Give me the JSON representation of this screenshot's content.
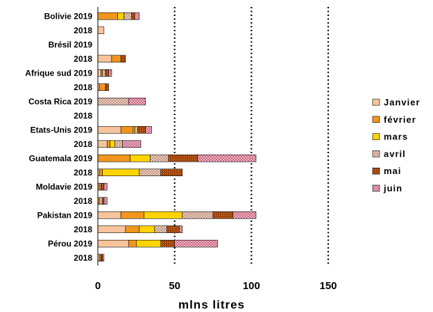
{
  "chart_data": {
    "type": "bar",
    "orientation": "horizontal",
    "stacked": true,
    "categories": [
      "Bolivie 2019",
      "2018",
      "Brésil 2019",
      "2018",
      "Afrique sud 2019",
      "2018",
      "Costa Rica 2019",
      "2018",
      "Etats-Unis 2019",
      "2018",
      "Guatemala 2019",
      "2018",
      "Moldavie 2019",
      "2018",
      "Pakistan 2019",
      "2018",
      "Pérou 2019",
      "2018"
    ],
    "series": [
      {
        "name": "Janvier",
        "color": "#f7c49b",
        "pattern": "solid",
        "values": [
          0,
          4,
          0,
          9,
          2,
          1,
          0,
          0,
          15,
          6,
          0,
          1,
          0,
          0,
          15,
          18,
          20,
          1
        ]
      },
      {
        "name": "février",
        "color": "#f0961e",
        "pattern": "solid",
        "values": [
          13,
          0,
          0,
          6,
          1,
          4,
          0,
          0,
          8,
          2,
          21,
          2,
          1,
          1,
          15,
          9,
          5,
          1
        ]
      },
      {
        "name": "mars",
        "color": "#ffd400",
        "pattern": "solid",
        "values": [
          4,
          0,
          0,
          0,
          0,
          0,
          0,
          0,
          1,
          3,
          13,
          24,
          0,
          0,
          25,
          10,
          16,
          0
        ]
      },
      {
        "name": "avril",
        "color": "#fde0cf",
        "pattern": "lattice",
        "values": [
          5,
          0,
          0,
          0,
          2,
          0,
          20,
          0,
          2,
          5,
          12,
          14,
          1,
          2,
          20,
          8,
          0,
          0
        ]
      },
      {
        "name": "mai",
        "color": "#a0440a",
        "pattern": "dots",
        "values": [
          2,
          0,
          0,
          3,
          2,
          2,
          0,
          0,
          5,
          0,
          19,
          14,
          2,
          1,
          13,
          8,
          9,
          1
        ]
      },
      {
        "name": "juin",
        "color": "#d2607c",
        "pattern": "lattice",
        "values": [
          3,
          0,
          0,
          0,
          2,
          0,
          11,
          0,
          4,
          12,
          38,
          0,
          2,
          2,
          15,
          2,
          28,
          1
        ]
      }
    ],
    "xlabel": "mlns litres",
    "xlim": [
      0,
      150
    ],
    "xticks": [
      0,
      50,
      100,
      150
    ],
    "xtick_labels": [
      "0",
      "50",
      "100",
      "150"
    ],
    "grid": "vertical dotted",
    "legend": "right"
  }
}
